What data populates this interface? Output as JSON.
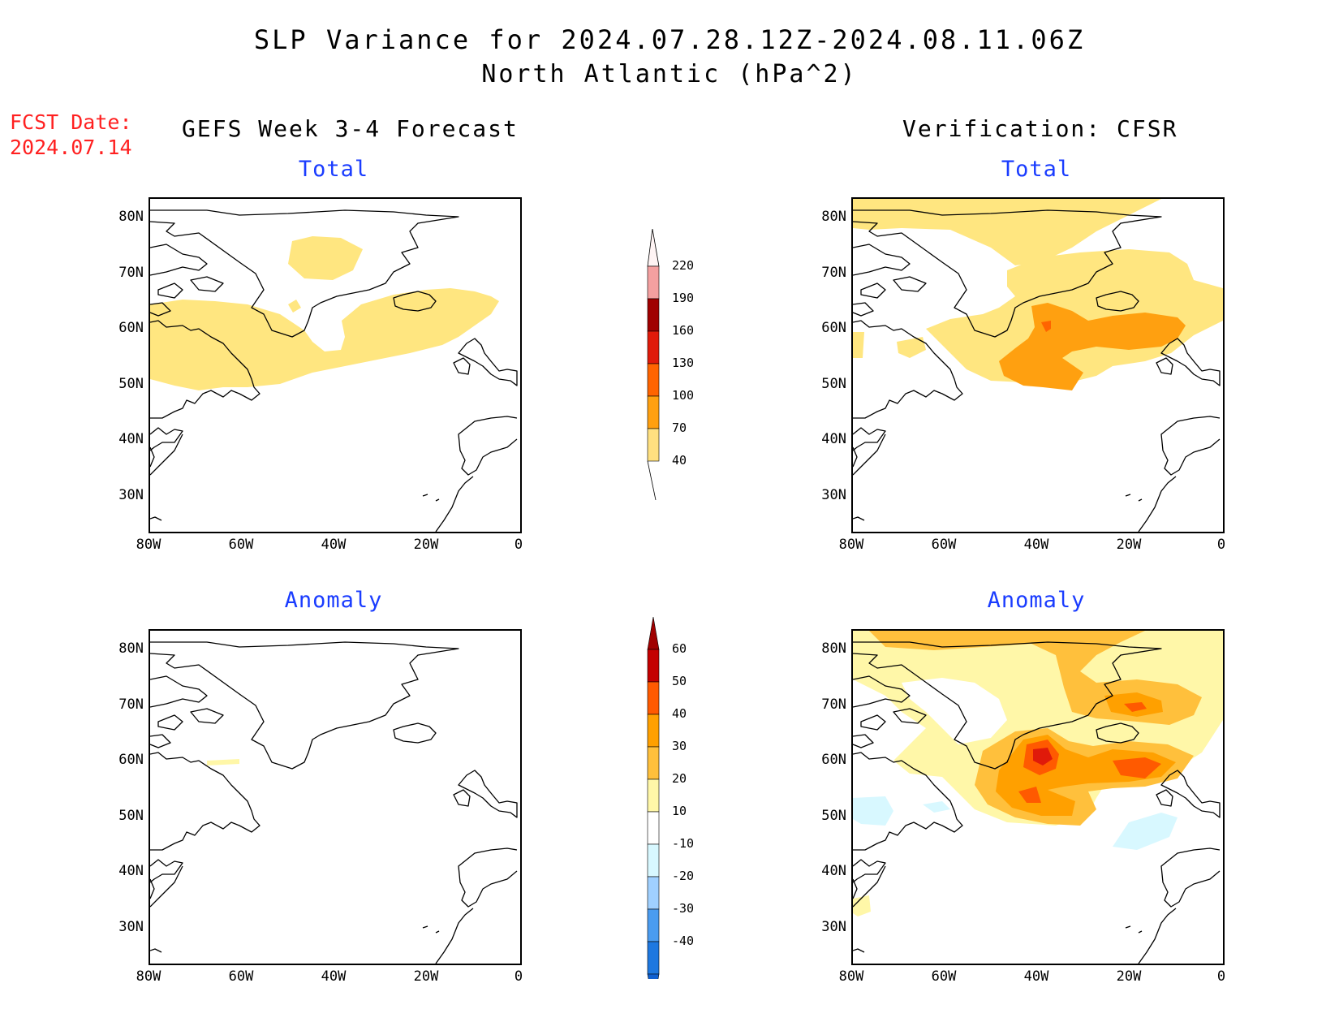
{
  "header": {
    "title_line1": "SLP Variance for 2024.07.28.12Z-2024.08.11.06Z",
    "title_line2": "North Atlantic (hPa^2)",
    "fcst_label": "FCST Date:",
    "fcst_date": "2024.07.14",
    "left_column_title": "GEFS Week 3-4 Forecast",
    "right_column_title": "Verification: CFSR"
  },
  "panels": {
    "top_left_title": "Total",
    "top_right_title": "Total",
    "bottom_left_title": "Anomaly",
    "bottom_right_title": "Anomaly"
  },
  "axes": {
    "lat_labels": [
      "80N",
      "70N",
      "60N",
      "50N",
      "40N",
      "30N"
    ],
    "lon_labels": [
      "80W",
      "60W",
      "40W",
      "20W",
      "0"
    ]
  },
  "colorbars": {
    "total": {
      "labels": [
        "220",
        "190",
        "160",
        "130",
        "100",
        "70",
        "40"
      ],
      "colors": [
        "#f4a0a0",
        "#a00000",
        "#e01a0a",
        "#ff6400",
        "#ffa010",
        "#ffe080"
      ]
    },
    "anomaly": {
      "labels": [
        "60",
        "50",
        "40",
        "30",
        "20",
        "10",
        "-10",
        "-20",
        "-30",
        "-40"
      ],
      "colors": [
        "#c40000",
        "#ff5a00",
        "#ffa000",
        "#ffc03c",
        "#fff7a8",
        "#ffffff",
        "#d8f8ff",
        "#a0d0ff",
        "#4a9cf0",
        "#1e78e0"
      ],
      "top_arrow_color": "#a00000",
      "bottom_arrow_color": "#1060d0"
    }
  },
  "colors": {
    "fill_40_70": "#ffe680",
    "fill_70_100": "#ffa010",
    "fill_100_130": "#ff6400",
    "anom_10_20": "#fff7a8",
    "anom_20_30": "#ffc03c",
    "anom_30_40": "#ffa000",
    "anom_40_50": "#ff5a00",
    "anom_50_60": "#e01a0a",
    "anom_neg": "#d8f8ff"
  }
}
